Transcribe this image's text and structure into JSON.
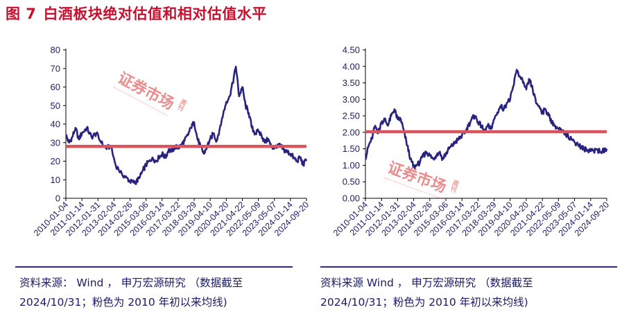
{
  "title": {
    "number": "图 7",
    "text": "白酒板块绝对估值和相对估值水平"
  },
  "watermark": {
    "text": "证券市场",
    "sub": "周刊"
  },
  "sources": {
    "left": {
      "line1": "资料来源： Wind ， 申万宏源研究 （数据截至",
      "line2": "2024/10/31；粉色为 2010 年初以来均线)"
    },
    "right": {
      "line1": "资料来源 Wind ， 申万宏源研究 （数据截至",
      "line2": "2024/10/31；粉色为 2010 年初以来均线)"
    }
  },
  "colors": {
    "title": "#c8102e",
    "series": "#28237f",
    "average": "#d9545d",
    "text": "#1b1b66"
  },
  "chart_data": [
    {
      "type": "line",
      "name": "absolute-valuation",
      "ylim": [
        0,
        80
      ],
      "yticks": [
        "0",
        "10",
        "20",
        "30",
        "40",
        "50",
        "60",
        "70",
        "80"
      ],
      "xticks": [
        "2010-01-04",
        "2011-01-14",
        "2012-01-31",
        "2013-02-04",
        "2014-02-26",
        "2015-03-06",
        "2016-03-14",
        "2017-03-22",
        "2018-03-29",
        "2019-04-10",
        "2020-04-20",
        "2021-04-22",
        "2022-05-09",
        "2023-05-07",
        "2024-01-14",
        "2024-09-20"
      ],
      "average": 28,
      "t": [
        0,
        0.2,
        0.4,
        0.6,
        0.8,
        1.0,
        1.3,
        1.6,
        1.9,
        2.2,
        2.5,
        2.8,
        3.1,
        3.5,
        3.8,
        4.0,
        4.2,
        4.4,
        4.6,
        4.8,
        5.0,
        5.2,
        5.4,
        5.6,
        5.8,
        6.0,
        6.2,
        6.4,
        6.6,
        6.8,
        7.0,
        7.2,
        7.4,
        7.6,
        7.8,
        8.0,
        8.2,
        8.4,
        8.6,
        8.8,
        9.0,
        9.2,
        9.4,
        9.6,
        9.8,
        10.0,
        10.2,
        10.4,
        10.6,
        10.8,
        11.0,
        11.2,
        11.4,
        11.6,
        11.8,
        12.0,
        12.2,
        12.4,
        12.6,
        12.8,
        13.0,
        13.2,
        13.4,
        13.6,
        13.8,
        14.0,
        14.2,
        14.4,
        14.6,
        14.8,
        15.0
      ],
      "values": [
        34,
        30,
        33,
        38,
        32,
        35,
        38,
        33,
        35,
        30,
        27,
        28,
        18,
        13,
        11,
        9,
        8.5,
        9,
        11,
        15,
        18,
        20,
        22,
        20,
        22,
        24,
        22,
        26,
        25,
        28,
        27,
        29,
        31,
        34,
        38,
        41,
        32,
        28,
        24,
        28,
        32,
        35,
        31,
        38,
        45,
        52,
        55,
        62,
        71,
        55,
        60,
        50,
        46,
        38,
        35,
        36,
        34,
        30,
        32,
        28,
        27,
        29,
        28,
        26,
        25,
        24,
        22,
        20,
        22,
        18,
        21
      ]
    },
    {
      "type": "line",
      "name": "relative-valuation",
      "ylim": [
        0,
        4.5
      ],
      "yticks": [
        "0.00",
        "0.50",
        "1.00",
        "1.50",
        "2.00",
        "2.50",
        "3.00",
        "3.50",
        "4.00",
        "4.50"
      ],
      "xticks": [
        "2010-01-04",
        "2011-01-14",
        "2012-01-31",
        "2013-02-04",
        "2014-02-26",
        "2015-03-06",
        "2016-03-14",
        "2017-03-22",
        "2018-03-29",
        "2019-04-10",
        "2020-04-20",
        "2021-04-22",
        "2022-05-09",
        "2023-05-07",
        "2024-01-14",
        "2024-09-20"
      ],
      "average": 2.02,
      "t": [
        0,
        0.2,
        0.4,
        0.6,
        0.8,
        1.0,
        1.2,
        1.4,
        1.6,
        1.8,
        2.0,
        2.2,
        2.4,
        2.6,
        2.8,
        3.0,
        3.2,
        3.4,
        3.6,
        3.8,
        4.0,
        4.2,
        4.4,
        4.6,
        4.8,
        5.0,
        5.2,
        5.4,
        5.6,
        5.8,
        6.0,
        6.2,
        6.4,
        6.6,
        6.8,
        7.0,
        7.2,
        7.4,
        7.6,
        7.8,
        8.0,
        8.2,
        8.4,
        8.6,
        8.8,
        9.0,
        9.2,
        9.4,
        9.6,
        9.8,
        10.0,
        10.2,
        10.4,
        10.6,
        10.8,
        11.0,
        11.2,
        11.4,
        11.6,
        11.8,
        12.0,
        12.2,
        12.4,
        12.6,
        12.8,
        13.0,
        13.2,
        13.4,
        13.6,
        13.8,
        14.0,
        14.2,
        14.4,
        14.6,
        14.8,
        15.0
      ],
      "values": [
        1.2,
        1.6,
        1.8,
        2.2,
        2.0,
        2.3,
        2.4,
        2.2,
        2.5,
        2.7,
        2.4,
        2.4,
        2.0,
        1.6,
        1.2,
        0.95,
        1.0,
        1.1,
        1.3,
        1.4,
        1.3,
        1.2,
        1.3,
        1.4,
        1.2,
        1.35,
        1.5,
        1.6,
        1.7,
        1.8,
        1.9,
        2.0,
        2.2,
        2.4,
        2.5,
        2.3,
        2.2,
        2.0,
        2.2,
        2.1,
        2.4,
        2.6,
        2.8,
        2.7,
        2.9,
        3.0,
        3.4,
        3.9,
        3.7,
        3.5,
        3.3,
        3.6,
        3.3,
        2.9,
        2.8,
        2.6,
        2.7,
        2.5,
        2.3,
        2.2,
        2.1,
        2.05,
        1.95,
        1.9,
        1.8,
        1.7,
        1.65,
        1.55,
        1.5,
        1.45,
        1.5,
        1.42,
        1.48,
        1.4,
        1.45,
        1.5
      ]
    }
  ]
}
